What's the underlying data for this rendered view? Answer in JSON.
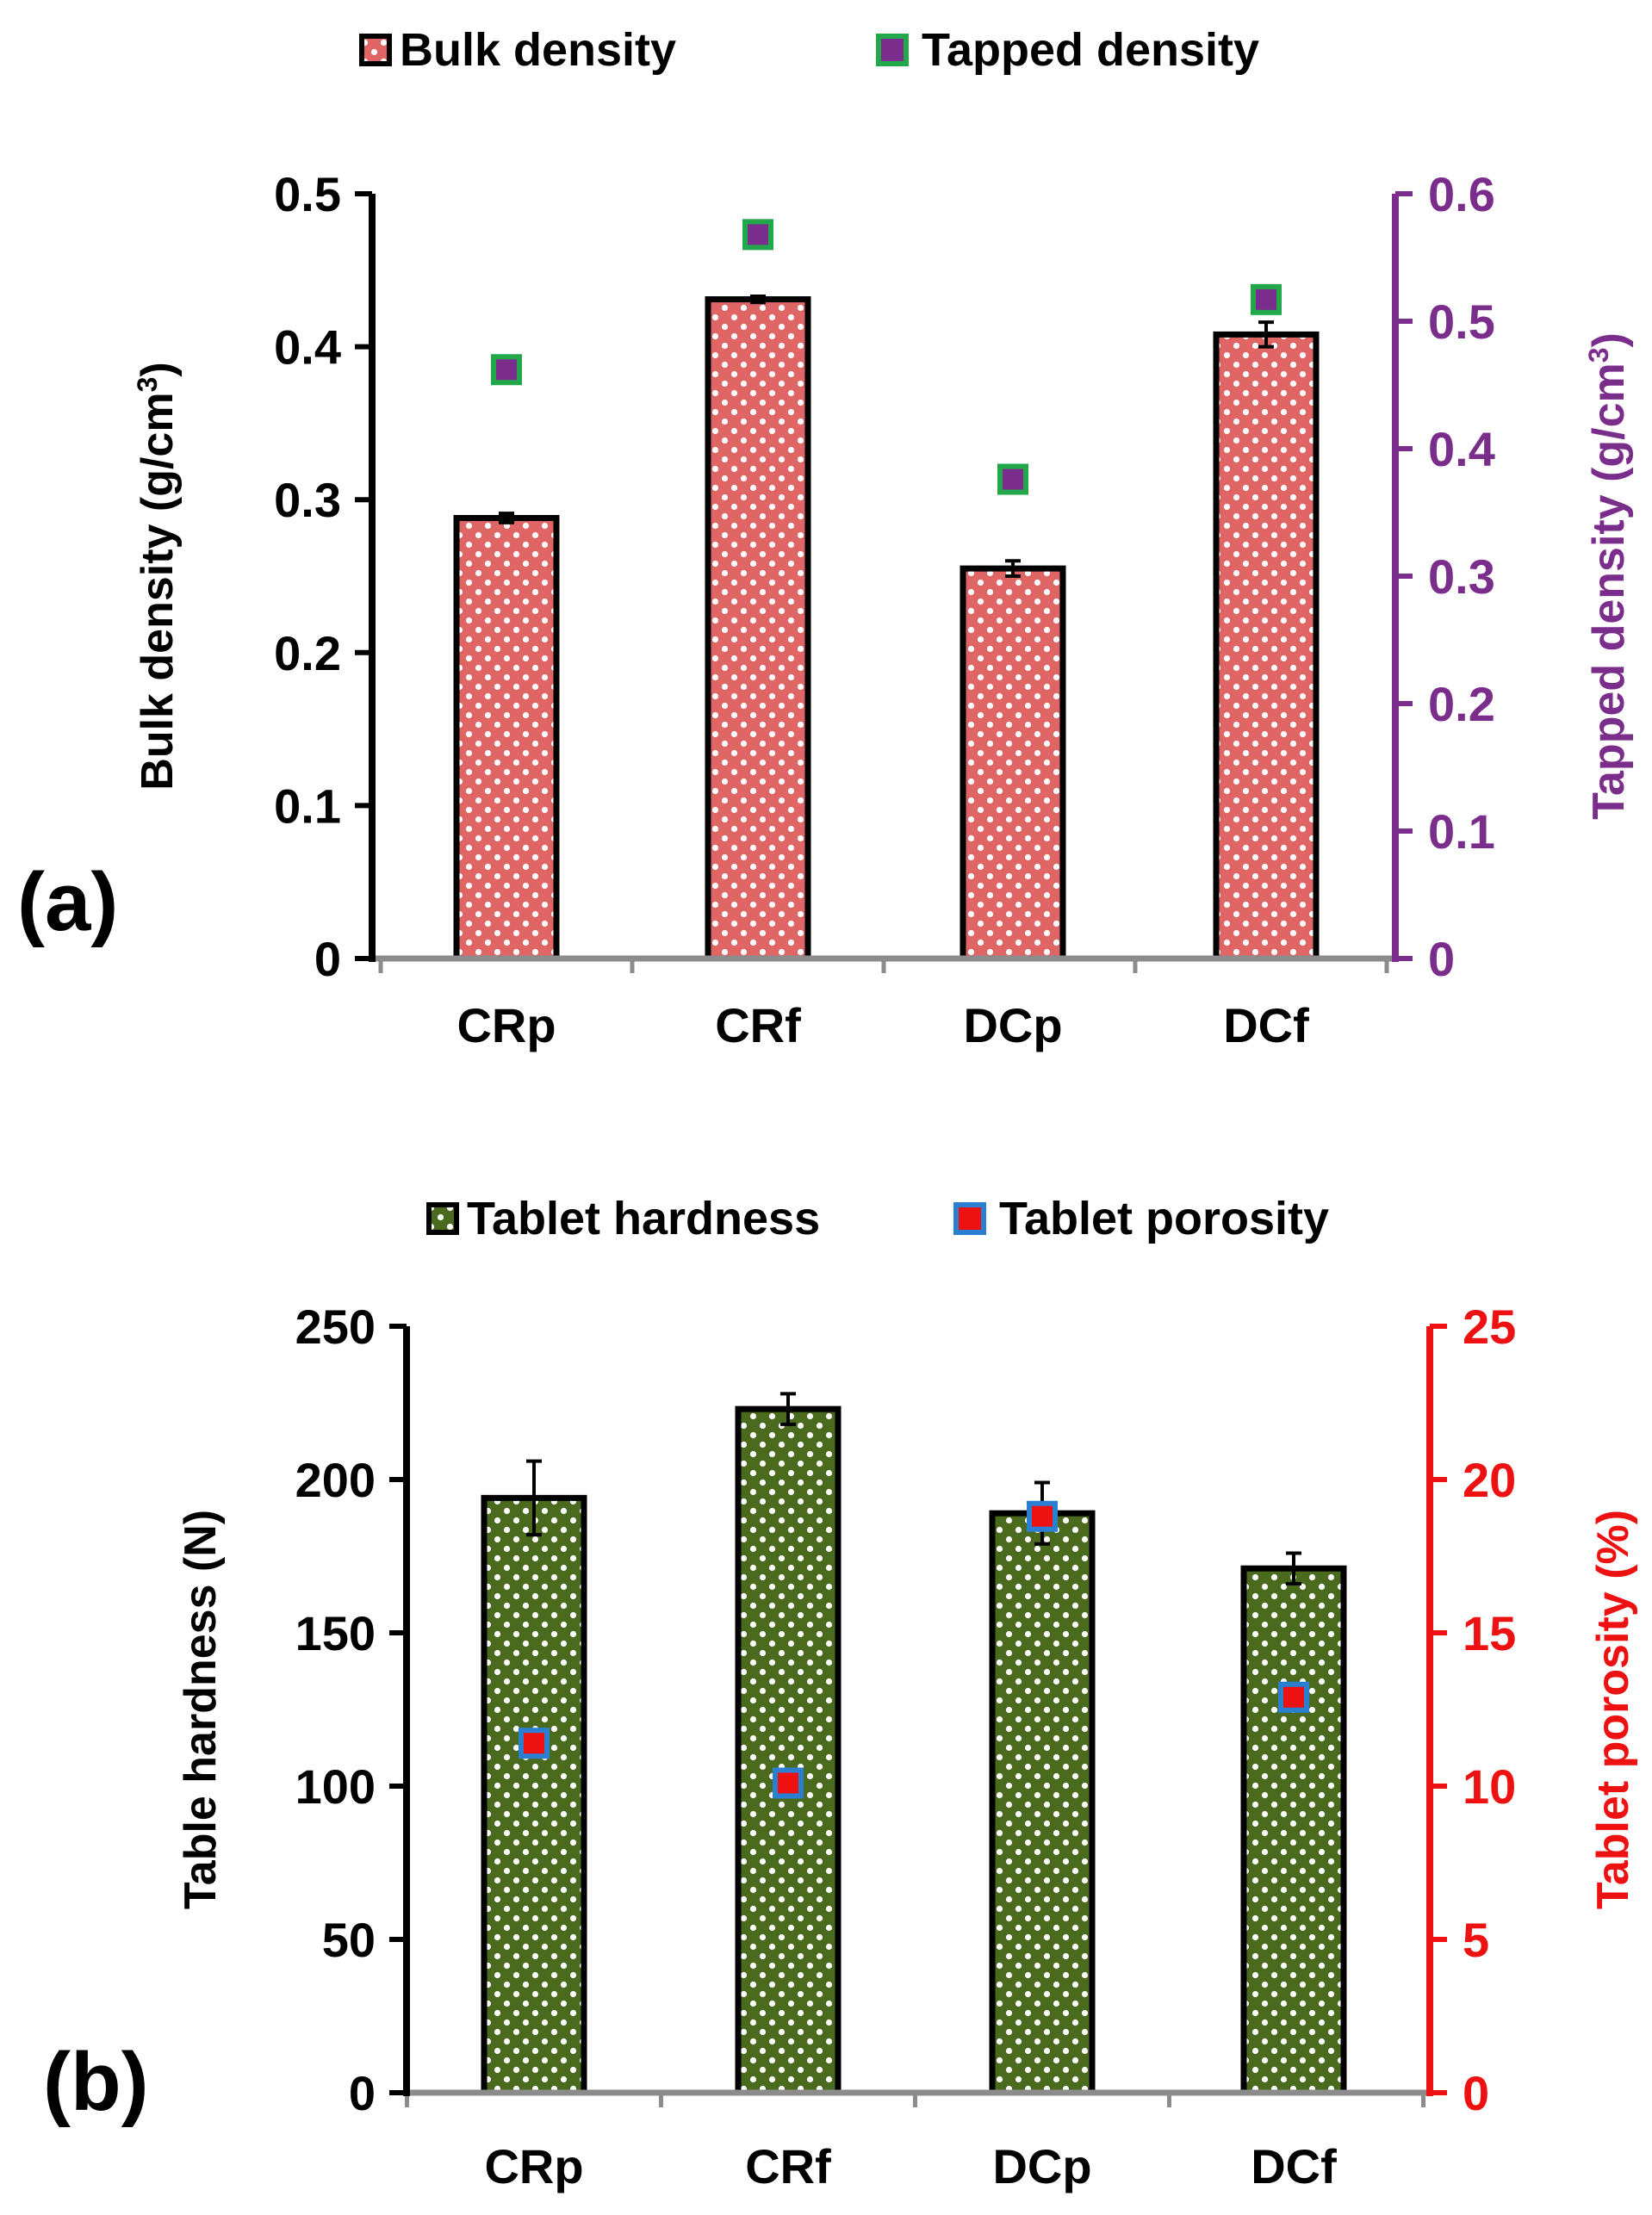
{
  "chart_data": [
    {
      "type": "bar",
      "panel_label": "(a)",
      "categories": [
        "CRp",
        "CRf",
        "DCp",
        "DCf"
      ],
      "legend": {
        "bar_label": "Bulk density",
        "marker_label": "Tapped density",
        "placement": "top"
      },
      "bar_series": {
        "name": "Bulk density",
        "values": [
          0.288,
          0.431,
          0.255,
          0.408
        ],
        "errors": [
          0.003,
          0.002,
          0.005,
          0.008
        ],
        "axis": "left",
        "fill": "#e06666",
        "pattern_fg": "#ffffff"
      },
      "marker_series": {
        "name": "Tapped density",
        "values": [
          0.462,
          0.568,
          0.376,
          0.517
        ],
        "axis": "right",
        "fill": "#7b2d8b",
        "border": "#22a84a"
      },
      "left_axis": {
        "title_main": "Bulk density (g/cm",
        "title_sup": "3",
        "title_end": ")",
        "ylim": [
          0,
          0.5
        ],
        "ticks": [
          0,
          0.1,
          0.2,
          0.3,
          0.4,
          0.5
        ],
        "tick_labels": [
          "0",
          "0.1",
          "0.2",
          "0.3",
          "0.4",
          "0.5"
        ],
        "color": "#000000"
      },
      "right_axis": {
        "title_main": "Tapped density (g/cm",
        "title_sup": "3",
        "title_end": ")",
        "ylim": [
          0,
          0.6
        ],
        "ticks": [
          0,
          0.1,
          0.2,
          0.3,
          0.4,
          0.5,
          0.6
        ],
        "tick_labels": [
          "0",
          "0.1",
          "0.2",
          "0.3",
          "0.4",
          "0.5",
          "0.6"
        ],
        "color": "#7b2d8b"
      }
    },
    {
      "type": "bar",
      "panel_label": "(b)",
      "categories": [
        "CRp",
        "CRf",
        "DCp",
        "DCf"
      ],
      "legend": {
        "bar_label": "Tablet hardness",
        "marker_label": "Tablet porosity",
        "placement": "top"
      },
      "bar_series": {
        "name": "Tablet hardness",
        "values": [
          194,
          223,
          189,
          171
        ],
        "errors": [
          12,
          5,
          10,
          5
        ],
        "axis": "left",
        "fill": "#4a6a1e",
        "pattern_fg": "#ffffff"
      },
      "marker_series": {
        "name": "Tablet porosity",
        "values": [
          11.4,
          10.1,
          18.8,
          12.9
        ],
        "axis": "right",
        "fill": "#ee1111",
        "border": "#2a7fd0"
      },
      "left_axis": {
        "title_main": "Table hardness (N)",
        "title_sup": "",
        "title_end": "",
        "ylim": [
          0,
          250
        ],
        "ticks": [
          0,
          50,
          100,
          150,
          200,
          250
        ],
        "tick_labels": [
          "0",
          "50",
          "100",
          "150",
          "200",
          "250"
        ],
        "color": "#000000"
      },
      "right_axis": {
        "title_main": "Tablet porosity (%)",
        "title_sup": "",
        "title_end": "",
        "ylim": [
          0,
          25
        ],
        "ticks": [
          0,
          5,
          10,
          15,
          20,
          25
        ],
        "tick_labels": [
          "0",
          "5",
          "10",
          "15",
          "20",
          "25"
        ],
        "color": "#ee1111"
      }
    }
  ]
}
